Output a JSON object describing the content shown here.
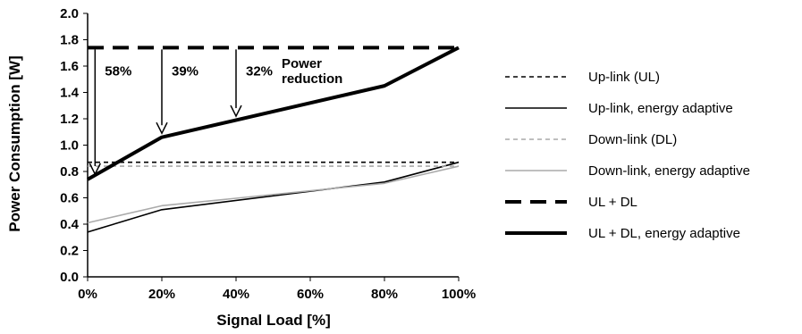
{
  "chart_data": {
    "type": "line",
    "xlabel": "Signal Load [%]",
    "ylabel": "Power Consumption [W]",
    "xlim": [
      0,
      100
    ],
    "ylim": [
      0,
      2.0
    ],
    "x_ticks": [
      "0%",
      "20%",
      "40%",
      "60%",
      "80%",
      "100%"
    ],
    "y_ticks": [
      "0.0",
      "0.2",
      "0.4",
      "0.6",
      "0.8",
      "1.0",
      "1.2",
      "1.4",
      "1.6",
      "1.8",
      "2.0"
    ],
    "grid": false,
    "legend_position": "right",
    "series": [
      {
        "name": "Up-link (UL)",
        "color": "#000000",
        "dash": "short",
        "width": "thin",
        "x": [
          0,
          100
        ],
        "y": [
          0.87,
          0.87
        ]
      },
      {
        "name": "Up-link, energy adaptive",
        "color": "#000000",
        "dash": "solid",
        "width": "thin",
        "x": [
          0,
          20,
          80,
          100
        ],
        "y": [
          0.34,
          0.51,
          0.72,
          0.87
        ]
      },
      {
        "name": "Down-link (DL)",
        "color": "#aaaaaa",
        "dash": "short",
        "width": "thin",
        "x": [
          0,
          100
        ],
        "y": [
          0.84,
          0.84
        ]
      },
      {
        "name": "Down-link, energy adaptive",
        "color": "#aaaaaa",
        "dash": "solid",
        "width": "thin",
        "x": [
          0,
          20,
          80,
          100
        ],
        "y": [
          0.41,
          0.54,
          0.71,
          0.84
        ]
      },
      {
        "name": "UL + DL",
        "color": "#000000",
        "dash": "long",
        "width": "thick",
        "x": [
          0,
          100
        ],
        "y": [
          1.74,
          1.74
        ]
      },
      {
        "name": "UL + DL, energy adaptive",
        "color": "#000000",
        "dash": "solid",
        "width": "thick",
        "x": [
          0,
          20,
          80,
          100
        ],
        "y": [
          0.74,
          1.06,
          1.45,
          1.74
        ]
      }
    ],
    "annotations": [
      {
        "text": "58%",
        "x": 2,
        "y_from": 1.74,
        "y_to": 0.78
      },
      {
        "text": "39%",
        "x": 20,
        "y_from": 1.74,
        "y_to": 1.09
      },
      {
        "text": "32%",
        "x": 40,
        "y_from": 1.74,
        "y_to": 1.22
      }
    ],
    "annotation_label": [
      "Power",
      "reduction"
    ]
  }
}
